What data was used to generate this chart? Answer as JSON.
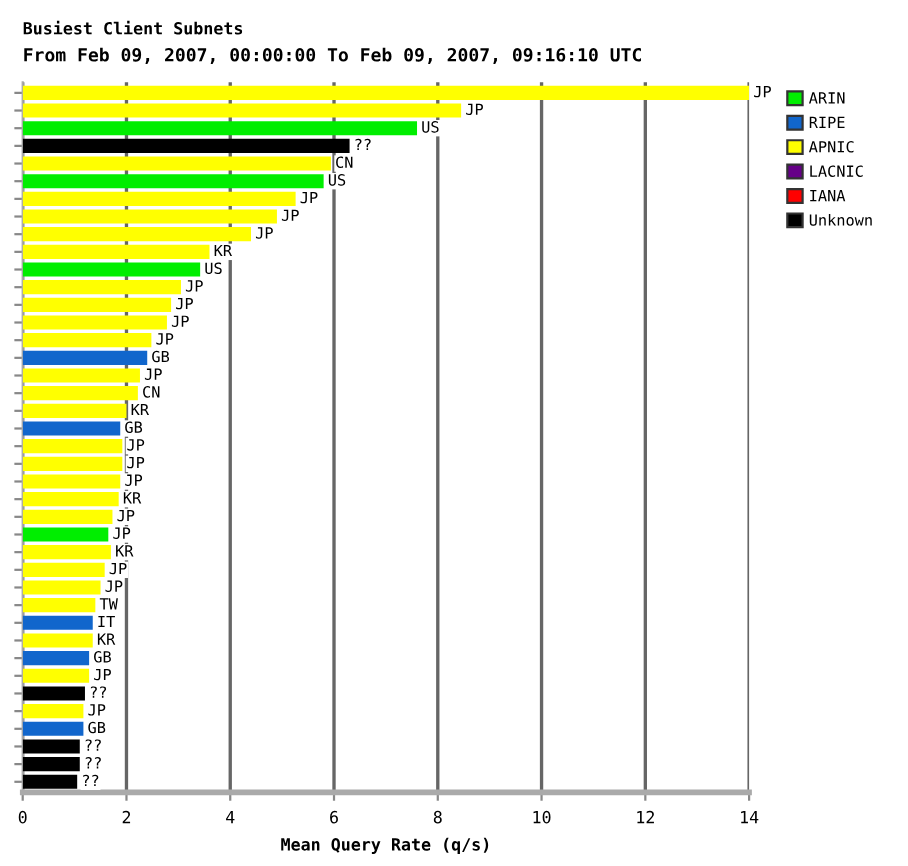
{
  "chart_data": {
    "type": "bar",
    "orientation": "horizontal",
    "title": "Busiest Client Subnets",
    "subtitle": "From Feb 09, 2007, 00:00:00 To Feb 09, 2007, 09:16:10 UTC",
    "xlabel": "Mean Query Rate (q/s)",
    "categories": [
      null,
      null,
      null,
      null,
      null,
      null,
      null,
      null,
      null,
      null,
      null,
      null,
      null,
      null,
      null,
      null,
      null,
      null,
      null,
      null,
      null,
      null,
      null,
      null,
      null,
      null,
      null,
      null,
      null,
      null,
      null,
      null,
      null,
      null,
      null,
      null,
      null,
      null,
      null,
      null
    ],
    "series": [
      {
        "name": "ARIN",
        "color": "#00ee00",
        "values": [
          null,
          null,
          7.6,
          null,
          null,
          5.8,
          null,
          null,
          null,
          null,
          3.42,
          null,
          null,
          null,
          null,
          null,
          null,
          null,
          null,
          null,
          null,
          null,
          null,
          null,
          null,
          1.65,
          null,
          null,
          null,
          null,
          null,
          null,
          null,
          null,
          null,
          null,
          null,
          null,
          null,
          null
        ],
        "value_labels": [
          null,
          null,
          "US",
          null,
          null,
          "US",
          null,
          null,
          null,
          null,
          "US",
          null,
          null,
          null,
          null,
          null,
          null,
          null,
          null,
          null,
          null,
          null,
          null,
          null,
          null,
          "JP",
          null,
          null,
          null,
          null,
          null,
          null,
          null,
          null,
          null,
          null,
          null,
          null,
          null,
          null
        ]
      },
      {
        "name": "RIPE",
        "color": "#1166cc",
        "values": [
          null,
          null,
          null,
          null,
          null,
          null,
          null,
          null,
          null,
          null,
          null,
          null,
          null,
          null,
          null,
          2.4,
          null,
          null,
          null,
          1.88,
          null,
          null,
          null,
          null,
          null,
          null,
          null,
          null,
          null,
          null,
          1.35,
          null,
          1.28,
          null,
          null,
          null,
          1.17,
          null,
          null,
          null
        ],
        "value_labels": [
          null,
          null,
          null,
          null,
          null,
          null,
          null,
          null,
          null,
          null,
          null,
          null,
          null,
          null,
          null,
          "GB",
          null,
          null,
          null,
          "GB",
          null,
          null,
          null,
          null,
          null,
          null,
          null,
          null,
          null,
          null,
          "IT",
          null,
          "GB",
          null,
          null,
          null,
          "GB",
          null,
          null,
          null
        ]
      },
      {
        "name": "APNIC",
        "color": "#ffff00",
        "values": [
          14.0,
          8.45,
          null,
          null,
          5.94,
          null,
          5.26,
          4.9,
          4.4,
          3.6,
          null,
          3.05,
          2.86,
          2.78,
          2.48,
          null,
          2.26,
          2.22,
          2.0,
          null,
          1.92,
          1.92,
          1.88,
          1.85,
          1.73,
          null,
          1.7,
          1.58,
          1.5,
          1.4,
          null,
          1.35,
          null,
          1.28,
          null,
          1.17,
          null,
          null,
          null,
          null
        ],
        "value_labels": [
          "JP",
          "JP",
          null,
          null,
          "CN",
          null,
          "JP",
          "JP",
          "JP",
          "KR",
          null,
          "JP",
          "JP",
          "JP",
          "JP",
          null,
          "JP",
          "CN",
          "KR",
          null,
          "JP",
          "JP",
          "JP",
          "KR",
          "JP",
          null,
          "KR",
          "JP",
          "JP",
          "TW",
          null,
          "KR",
          null,
          "JP",
          null,
          "JP",
          null,
          null,
          null,
          null
        ]
      },
      {
        "name": "LACNIC",
        "color": "#660088",
        "values": [
          null,
          null,
          null,
          null,
          null,
          null,
          null,
          null,
          null,
          null,
          null,
          null,
          null,
          null,
          null,
          null,
          null,
          null,
          null,
          null,
          null,
          null,
          null,
          null,
          null,
          null,
          null,
          null,
          null,
          null,
          null,
          null,
          null,
          null,
          null,
          null,
          null,
          null,
          null,
          null
        ]
      },
      {
        "name": "IANA",
        "color": "#ff0000",
        "values": [
          null,
          null,
          null,
          null,
          null,
          null,
          null,
          null,
          null,
          null,
          null,
          null,
          null,
          null,
          null,
          null,
          null,
          null,
          null,
          null,
          null,
          null,
          null,
          null,
          null,
          null,
          null,
          null,
          null,
          null,
          null,
          null,
          null,
          null,
          null,
          null,
          null,
          null,
          null,
          null
        ]
      },
      {
        "name": "Unknown",
        "color": "#000000",
        "values": [
          null,
          null,
          null,
          6.3,
          null,
          null,
          null,
          null,
          null,
          null,
          null,
          null,
          null,
          null,
          null,
          null,
          null,
          null,
          null,
          null,
          null,
          null,
          null,
          null,
          null,
          null,
          null,
          null,
          null,
          null,
          null,
          null,
          null,
          null,
          1.2,
          null,
          null,
          1.1,
          1.1,
          1.05
        ],
        "value_labels": [
          null,
          null,
          null,
          "??",
          null,
          null,
          null,
          null,
          null,
          null,
          null,
          null,
          null,
          null,
          null,
          null,
          null,
          null,
          null,
          null,
          null,
          null,
          null,
          null,
          null,
          null,
          null,
          null,
          null,
          null,
          null,
          null,
          null,
          null,
          "??",
          null,
          null,
          "??",
          "??",
          "??"
        ]
      }
    ],
    "xlim": [
      0,
      14
    ],
    "xticks": [
      0,
      2,
      4,
      6,
      8,
      10,
      12,
      14
    ],
    "grid": "x",
    "legend": "right"
  }
}
